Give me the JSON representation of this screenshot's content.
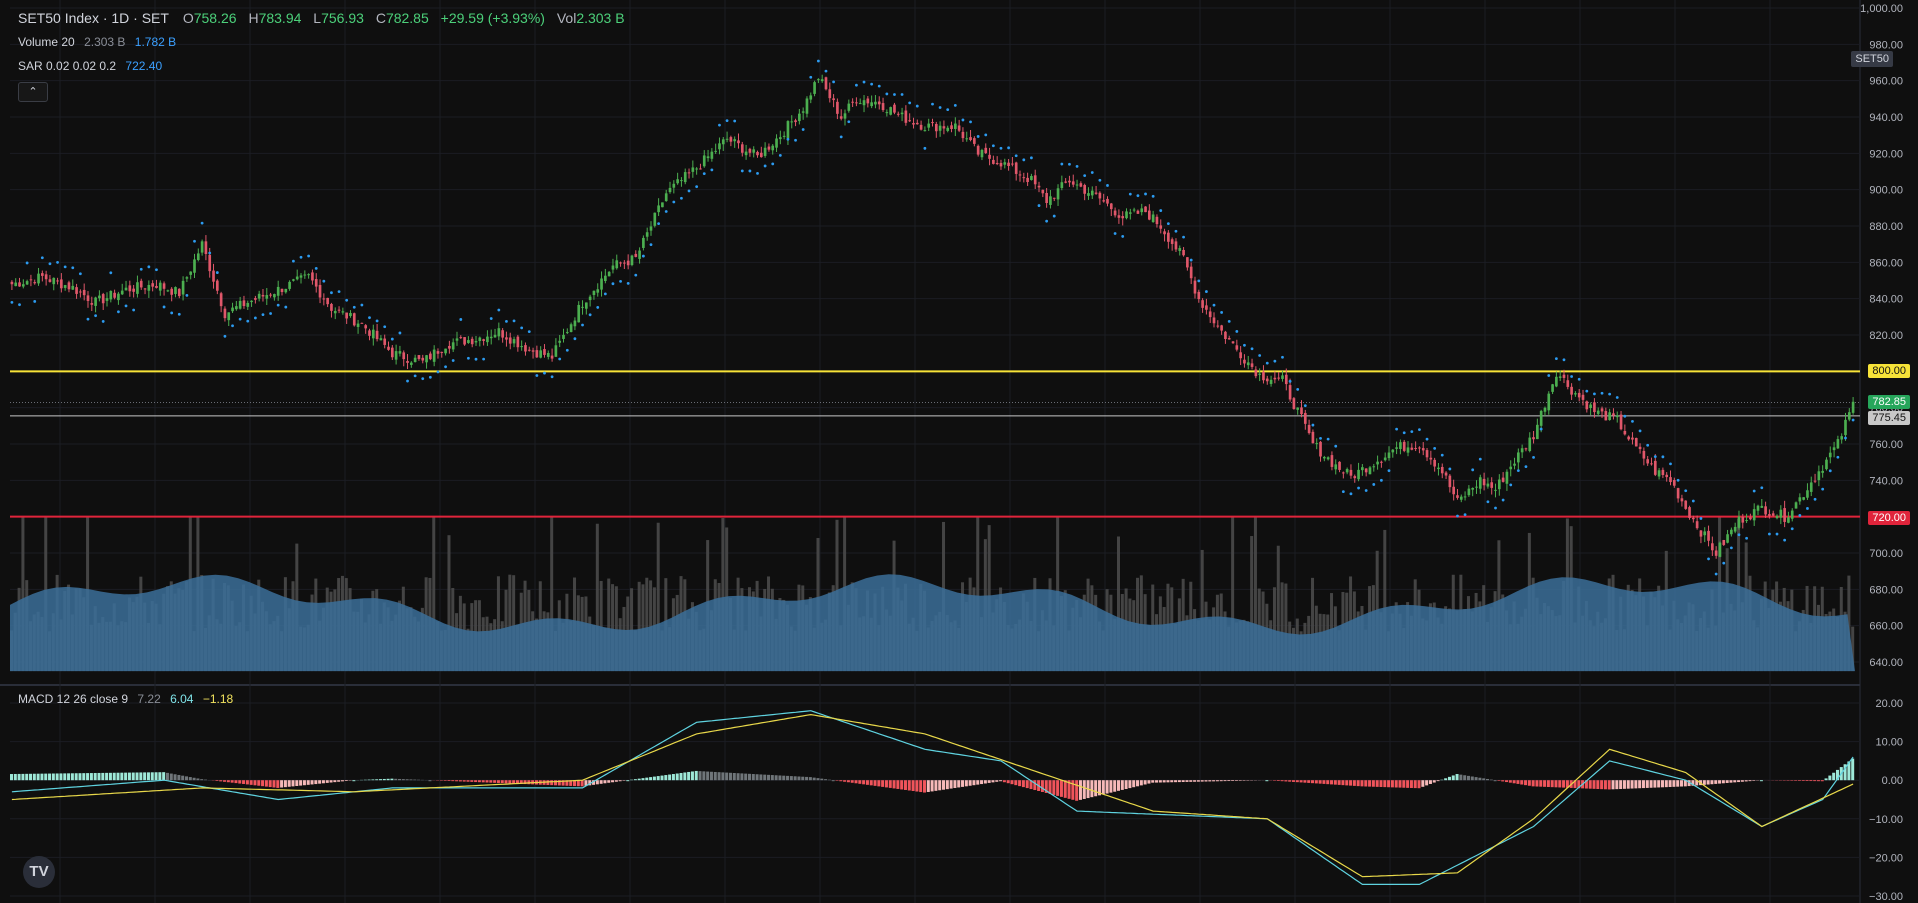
{
  "header": {
    "symbol": "SET50 Index · 1D · SET",
    "open_label": "O",
    "open": "758.26",
    "high_label": "H",
    "high": "783.94",
    "low_label": "L",
    "low": "756.93",
    "close_label": "C",
    "close": "782.85",
    "change": "+29.59 (+3.93%)",
    "vol_label": "Vol",
    "vol": "2.303 B"
  },
  "volume_legend": {
    "label": "Volume 20",
    "value1": "2.303 B",
    "value2": "1.782 B"
  },
  "sar_legend": {
    "label": "SAR 0.02 0.02 0.2",
    "value": "722.40"
  },
  "macd_legend": {
    "label": "MACD 12 26 close 9",
    "hist": "7.22",
    "macd": "6.04",
    "signal": "−1.18"
  },
  "symbol_tag": "SET50",
  "price_tags": {
    "resistance": "800.00",
    "close": "782.85",
    "ma": "775.45",
    "support": "720.00"
  },
  "collapse_icon": "chevron-up-icon",
  "logo_text": "TV",
  "colors": {
    "background": "#0f0f0f",
    "up": "#4caf50",
    "down": "#e0576a",
    "sar": "#2c9bf0",
    "volume": "#3b6f99",
    "resistance": "#f7e338",
    "support": "#e0243b",
    "macd": "#5fd3e0",
    "signal": "#e8d84a"
  },
  "chart_data": [
    {
      "type": "candlestick",
      "title": "SET50 Index · 1D · SET",
      "y_ticks": [
        "1,000.00",
        "980.00",
        "960.00",
        "940.00",
        "920.00",
        "900.00",
        "880.00",
        "860.00",
        "840.00",
        "820.00",
        "800.00",
        "780.00",
        "760.00",
        "740.00",
        "720.00",
        "700.00",
        "680.00",
        "660.00",
        "640.00"
      ],
      "ylim": [
        630,
        1000
      ],
      "horizontal_lines": [
        {
          "value": 800,
          "color": "#f7e338"
        },
        {
          "value": 720,
          "color": "#e0243b"
        },
        {
          "value": 775.45,
          "color": "#c8c8c8"
        }
      ],
      "close_path": [
        [
          0,
          848
        ],
        [
          8,
          852
        ],
        [
          16,
          846
        ],
        [
          22,
          838
        ],
        [
          30,
          845
        ],
        [
          38,
          848
        ],
        [
          44,
          843
        ],
        [
          50,
          870
        ],
        [
          56,
          832
        ],
        [
          62,
          838
        ],
        [
          70,
          845
        ],
        [
          78,
          852
        ],
        [
          84,
          835
        ],
        [
          92,
          826
        ],
        [
          100,
          810
        ],
        [
          108,
          805
        ],
        [
          114,
          815
        ],
        [
          122,
          818
        ],
        [
          128,
          822
        ],
        [
          136,
          812
        ],
        [
          142,
          808
        ],
        [
          150,
          838
        ],
        [
          158,
          858
        ],
        [
          164,
          862
        ],
        [
          172,
          898
        ],
        [
          180,
          912
        ],
        [
          188,
          928
        ],
        [
          196,
          918
        ],
        [
          202,
          930
        ],
        [
          208,
          945
        ],
        [
          212,
          962
        ],
        [
          218,
          940
        ],
        [
          222,
          950
        ],
        [
          228,
          948
        ],
        [
          234,
          940
        ],
        [
          240,
          935
        ],
        [
          248,
          935
        ],
        [
          254,
          920
        ],
        [
          260,
          915
        ],
        [
          268,
          905
        ],
        [
          272,
          894
        ],
        [
          278,
          905
        ],
        [
          286,
          895
        ],
        [
          292,
          885
        ],
        [
          298,
          888
        ],
        [
          302,
          880
        ],
        [
          308,
          862
        ],
        [
          312,
          840
        ],
        [
          318,
          822
        ],
        [
          322,
          812
        ],
        [
          328,
          798
        ],
        [
          334,
          795
        ],
        [
          338,
          778
        ],
        [
          342,
          760
        ],
        [
          348,
          748
        ],
        [
          352,
          742
        ],
        [
          358,
          750
        ],
        [
          364,
          758
        ],
        [
          370,
          760
        ],
        [
          376,
          745
        ],
        [
          380,
          728
        ],
        [
          386,
          740
        ],
        [
          390,
          735
        ],
        [
          394,
          748
        ],
        [
          400,
          765
        ],
        [
          406,
          800
        ],
        [
          410,
          790
        ],
        [
          416,
          778
        ],
        [
          422,
          773
        ],
        [
          426,
          760
        ],
        [
          432,
          745
        ],
        [
          436,
          740
        ],
        [
          440,
          725
        ],
        [
          444,
          712
        ],
        [
          448,
          700
        ],
        [
          454,
          718
        ],
        [
          460,
          725
        ],
        [
          466,
          720
        ],
        [
          470,
          730
        ],
        [
          476,
          748
        ],
        [
          480,
          760
        ],
        [
          484,
          782
        ]
      ],
      "volume_total_bars": 485,
      "volume_ma_range_billion": [
        1.5,
        2.1
      ]
    },
    {
      "type": "line",
      "title": "MACD 12 26 close 9",
      "y_ticks": [
        "20.00",
        "10.00",
        "0.00",
        "−10.00",
        "−20.00",
        "−30.00"
      ],
      "ylim": [
        -32,
        23
      ],
      "macd": [
        [
          0,
          -3
        ],
        [
          40,
          0
        ],
        [
          70,
          -5
        ],
        [
          100,
          -2
        ],
        [
          150,
          -2
        ],
        [
          180,
          15
        ],
        [
          210,
          18
        ],
        [
          240,
          8
        ],
        [
          260,
          5
        ],
        [
          280,
          -8
        ],
        [
          330,
          -10
        ],
        [
          355,
          -27
        ],
        [
          370,
          -27
        ],
        [
          400,
          -12
        ],
        [
          420,
          5
        ],
        [
          440,
          0
        ],
        [
          460,
          -12
        ],
        [
          476,
          -5
        ],
        [
          484,
          6
        ]
      ],
      "signal": [
        [
          0,
          -5
        ],
        [
          50,
          -2
        ],
        [
          90,
          -3
        ],
        [
          150,
          0
        ],
        [
          180,
          12
        ],
        [
          210,
          17
        ],
        [
          240,
          12
        ],
        [
          270,
          2
        ],
        [
          300,
          -8
        ],
        [
          330,
          -10
        ],
        [
          355,
          -25
        ],
        [
          380,
          -24
        ],
        [
          400,
          -10
        ],
        [
          420,
          8
        ],
        [
          440,
          2
        ],
        [
          460,
          -12
        ],
        [
          484,
          -1
        ]
      ]
    }
  ]
}
